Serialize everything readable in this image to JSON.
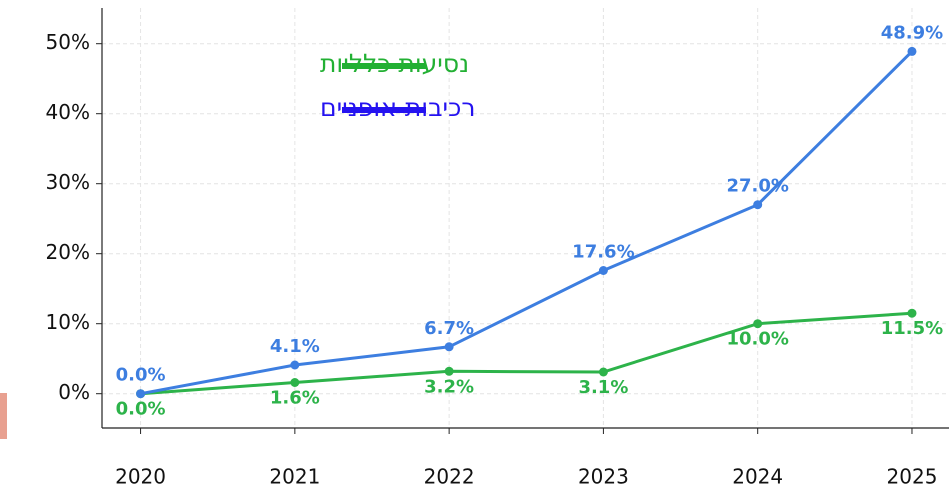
{
  "chart_data": {
    "type": "line",
    "x": [
      2020,
      2021,
      2022,
      2023,
      2024,
      2025
    ],
    "xlim": [
      2019.75,
      2025.24
    ],
    "xticks": [
      2020,
      2021,
      2022,
      2023,
      2024,
      2025
    ],
    "ylim": [
      -4.9,
      55.1
    ],
    "yticks": [
      {
        "value": 0,
        "label": "0%"
      },
      {
        "value": 10,
        "label": "10%"
      },
      {
        "value": 20,
        "label": "20%"
      },
      {
        "value": 30,
        "label": "30%"
      },
      {
        "value": 40,
        "label": "40%"
      },
      {
        "value": 50,
        "label": "50%"
      }
    ],
    "grid": true,
    "legend": "upper-left",
    "series": [
      {
        "name": "נסיעות כלליות",
        "color": "#2db34a",
        "legend_color": "#22b033",
        "values": [
          0,
          1.6,
          3.2,
          3.1,
          10.0,
          11.5
        ],
        "value_labels": [
          "0.0%",
          "1.6%",
          "3.2%",
          "3.1%",
          "10.0%",
          "11.5%"
        ]
      },
      {
        "name": "רכיבות אופניים",
        "color": "#3d7ee0",
        "legend_color": "#2412f0",
        "values": [
          0,
          4.1,
          6.7,
          17.6,
          27.0,
          48.9
        ],
        "value_labels": [
          "0.0%",
          "4.1%",
          "6.7%",
          "17.6%",
          "27.0%",
          "48.9%"
        ]
      }
    ]
  }
}
